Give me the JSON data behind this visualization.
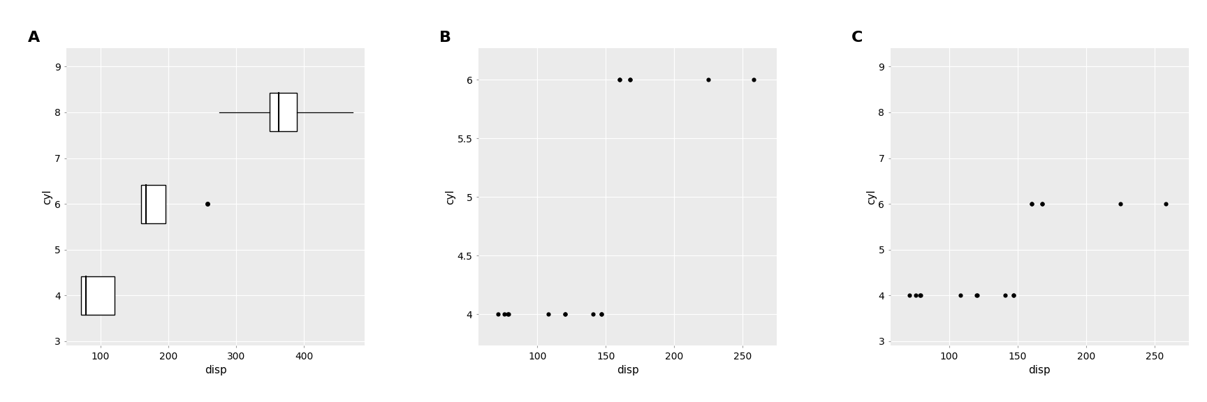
{
  "panel_labels": [
    "A",
    "B",
    "C"
  ],
  "bg_color": "#EBEBEB",
  "grid_color": "#FFFFFF",
  "point_color": "#000000",
  "label_fontsize": 11,
  "tick_fontsize": 10,
  "panel_label_fontsize": 16,
  "panel_A": {
    "type": "boxplot",
    "xlabel": "disp",
    "ylabel": "cyl",
    "ylim": [
      2.9,
      9.4
    ],
    "yticks": [
      3,
      4,
      5,
      6,
      7,
      8,
      9
    ],
    "xlim": [
      50,
      490
    ],
    "xticks": [
      100,
      200,
      300,
      400
    ],
    "cyl_4_disp": {
      "q1": 71.1,
      "q2": 78.7,
      "q3": 120.65,
      "wlo": 71.1,
      "whi": 120.65,
      "outliers": []
    },
    "cyl_6_disp": {
      "q1": 160.0,
      "q2": 167.6,
      "q3": 196.3,
      "wlo": 160.0,
      "whi": 196.3,
      "outliers": [
        258.0
      ]
    },
    "cyl_8_disp": {
      "q1": 350.0,
      "q2": 362.9,
      "q3": 390.0,
      "wlo": 275.8,
      "whi": 472.0,
      "outliers": []
    }
  },
  "panel_B": {
    "type": "scatter",
    "xlabel": "disp",
    "ylabel": "cyl",
    "ylim": [
      3.73,
      6.27
    ],
    "yticks": [
      4.0,
      4.5,
      5.0,
      5.5,
      6.0
    ],
    "xlim": [
      57,
      275
    ],
    "xticks": [
      100,
      150,
      200,
      250
    ],
    "points_x": [
      71.1,
      75.7,
      78.7,
      79.0,
      108.0,
      120.1,
      120.3,
      140.8,
      146.7,
      146.7,
      160.0,
      160.0,
      167.6,
      167.6,
      225.0,
      258.0
    ],
    "points_y": [
      4,
      4,
      4,
      4,
      4,
      4,
      4,
      4,
      4,
      4,
      6,
      6,
      6,
      6,
      6,
      6
    ]
  },
  "panel_C": {
    "type": "scatter",
    "xlabel": "disp",
    "ylabel": "cyl",
    "ylim": [
      2.9,
      9.4
    ],
    "yticks": [
      3,
      4,
      5,
      6,
      7,
      8,
      9
    ],
    "xlim": [
      57,
      275
    ],
    "xticks": [
      100,
      150,
      200,
      250
    ],
    "points_x": [
      71.1,
      75.7,
      78.7,
      79.0,
      108.0,
      120.1,
      120.3,
      140.8,
      146.7,
      146.7,
      160.0,
      160.0,
      167.6,
      167.6,
      225.0,
      258.0
    ],
    "points_y": [
      4,
      4,
      4,
      4,
      4,
      4,
      4,
      4,
      4,
      4,
      6,
      6,
      6,
      6,
      6,
      6
    ]
  }
}
